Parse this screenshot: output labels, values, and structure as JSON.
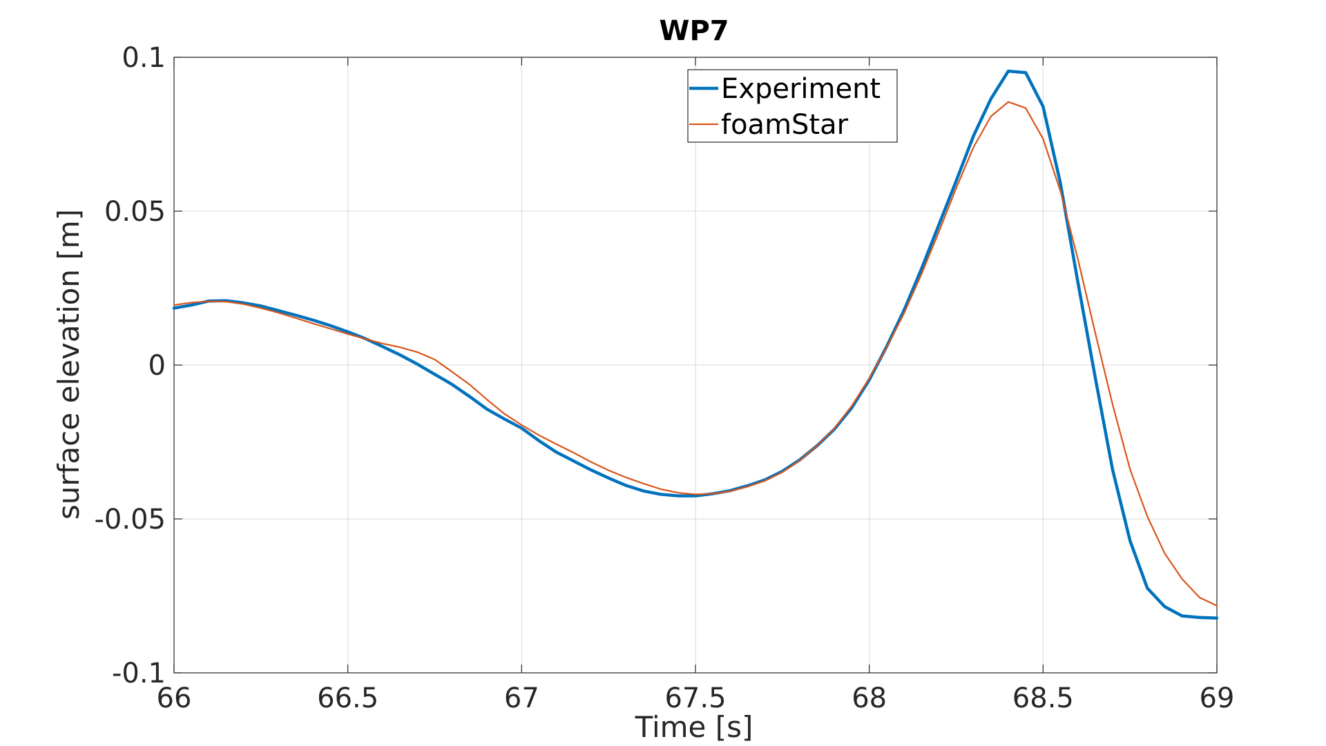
{
  "chart_data": {
    "type": "line",
    "title": "WP7",
    "xlabel": "Time [s]",
    "ylabel": "surface elevation [m]",
    "xlim": [
      66,
      69
    ],
    "ylim": [
      -0.1,
      0.1
    ],
    "xticks": [
      66,
      66.5,
      67,
      67.5,
      68,
      68.5,
      69
    ],
    "xtick_labels": [
      "66",
      "66.5",
      "67",
      "67.5",
      "68",
      "68.5",
      "69"
    ],
    "yticks": [
      -0.1,
      -0.05,
      0,
      0.05,
      0.1
    ],
    "ytick_labels": [
      "-0.1",
      "-0.05",
      "0",
      "0.05",
      "0.1"
    ],
    "grid": true,
    "legend_position": "top-center",
    "series": [
      {
        "name": "Experiment",
        "color": "#0072BD",
        "x": [
          66.0,
          66.05,
          66.1,
          66.15,
          66.2,
          66.25,
          66.3,
          66.35,
          66.4,
          66.45,
          66.5,
          66.55,
          66.6,
          66.65,
          66.7,
          66.75,
          66.8,
          66.85,
          66.9,
          66.95,
          67.0,
          67.05,
          67.1,
          67.15,
          67.2,
          67.25,
          67.3,
          67.35,
          67.4,
          67.45,
          67.5,
          67.55,
          67.6,
          67.65,
          67.7,
          67.75,
          67.8,
          67.85,
          67.9,
          67.95,
          68.0,
          68.05,
          68.1,
          68.15,
          68.2,
          68.25,
          68.3,
          68.35,
          68.4,
          68.45,
          68.5,
          68.55,
          68.6,
          68.65,
          68.7,
          68.75,
          68.8,
          68.85,
          68.9,
          68.95,
          69.0
        ],
        "y": [
          0.0185,
          0.0195,
          0.0208,
          0.0209,
          0.0202,
          0.0192,
          0.0177,
          0.0162,
          0.0146,
          0.0128,
          0.0108,
          0.0086,
          0.006,
          0.0033,
          0.0003,
          -0.003,
          -0.0063,
          -0.0102,
          -0.0143,
          -0.0175,
          -0.0205,
          -0.0246,
          -0.0283,
          -0.0312,
          -0.0341,
          -0.0367,
          -0.0391,
          -0.0409,
          -0.042,
          -0.0425,
          -0.0425,
          -0.0418,
          -0.0408,
          -0.0392,
          -0.0373,
          -0.0345,
          -0.0308,
          -0.0262,
          -0.0208,
          -0.0138,
          -0.0048,
          0.006,
          0.0178,
          0.0312,
          0.0455,
          0.0598,
          0.0745,
          0.0865,
          0.0955,
          0.095,
          0.084,
          0.059,
          0.027,
          -0.004,
          -0.034,
          -0.057,
          -0.0725,
          -0.0785,
          -0.0815,
          -0.082,
          -0.0822
        ]
      },
      {
        "name": "foamStar",
        "color": "#D95319",
        "x": [
          66.0,
          66.05,
          66.1,
          66.15,
          66.2,
          66.25,
          66.3,
          66.35,
          66.4,
          66.45,
          66.5,
          66.55,
          66.6,
          66.65,
          66.7,
          66.75,
          66.8,
          66.85,
          66.9,
          66.95,
          67.0,
          67.05,
          67.1,
          67.15,
          67.2,
          67.25,
          67.3,
          67.35,
          67.4,
          67.45,
          67.5,
          67.55,
          67.6,
          67.65,
          67.7,
          67.75,
          67.8,
          67.85,
          67.9,
          67.95,
          68.0,
          68.05,
          68.1,
          68.15,
          68.2,
          68.25,
          68.3,
          68.35,
          68.4,
          68.45,
          68.5,
          68.55,
          68.6,
          68.65,
          68.7,
          68.75,
          68.8,
          68.85,
          68.9,
          68.95,
          69.0
        ],
        "y": [
          0.0195,
          0.0203,
          0.0207,
          0.0206,
          0.0198,
          0.0185,
          0.017,
          0.0153,
          0.0135,
          0.0118,
          0.0101,
          0.0085,
          0.007,
          0.0058,
          0.0042,
          0.0018,
          -0.0022,
          -0.0063,
          -0.0112,
          -0.0158,
          -0.0195,
          -0.0228,
          -0.0257,
          -0.0285,
          -0.0315,
          -0.0342,
          -0.0365,
          -0.0385,
          -0.0403,
          -0.0415,
          -0.042,
          -0.0418,
          -0.041,
          -0.0395,
          -0.0376,
          -0.0348,
          -0.031,
          -0.0262,
          -0.0205,
          -0.0132,
          -0.0043,
          0.0057,
          0.0168,
          0.0295,
          0.0432,
          0.0575,
          0.0708,
          0.0808,
          0.0855,
          0.0835,
          0.0735,
          0.0565,
          0.0345,
          0.0105,
          -0.0128,
          -0.0338,
          -0.0492,
          -0.0612,
          -0.0695,
          -0.0755,
          -0.0782
        ]
      }
    ]
  }
}
